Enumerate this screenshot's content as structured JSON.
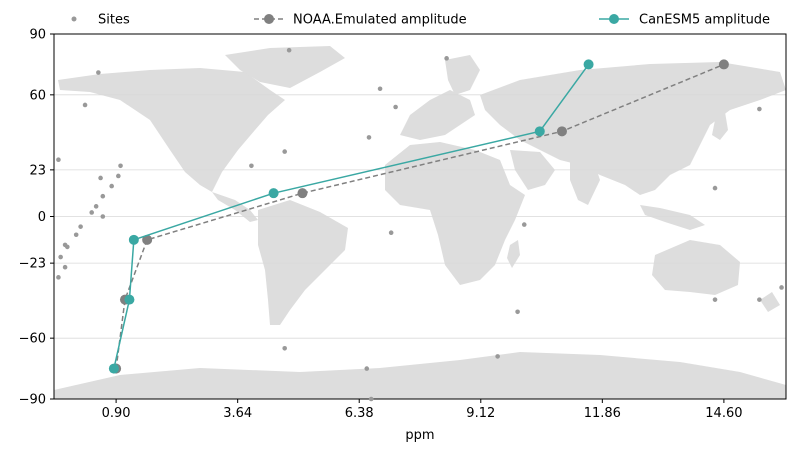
{
  "chart_data": {
    "type": "line",
    "title": "",
    "xlabel": "ppm",
    "ylabel": "",
    "xlim": [
      -0.5,
      16.0
    ],
    "ylim": [
      -90,
      90
    ],
    "xticks": [
      0.9,
      3.64,
      6.38,
      9.12,
      11.86,
      14.6
    ],
    "xtick_labels": [
      "0.90",
      "3.64",
      "6.38",
      "9.12",
      "11.86",
      "14.60"
    ],
    "yticks": [
      -90,
      -60,
      -23,
      0,
      23,
      60,
      90
    ],
    "ytick_labels": [
      "−90",
      "−60",
      "−23",
      "0",
      "23",
      "60",
      "90"
    ],
    "grid": "horizontal",
    "legend_placement": "top (above plot)",
    "background": "world-map (grey land)",
    "series": [
      {
        "name": "NOAA.Emulated amplitude",
        "color": "#808080",
        "style": "dashed",
        "marker": "circle",
        "points": [
          {
            "x": 0.9,
            "y": -75
          },
          {
            "x": 1.1,
            "y": -41
          },
          {
            "x": 1.6,
            "y": -11.5
          },
          {
            "x": 5.1,
            "y": 11.5
          },
          {
            "x": 10.95,
            "y": 42
          },
          {
            "x": 14.6,
            "y": 75
          }
        ]
      },
      {
        "name": "CanESM5 amplitude",
        "color": "#3aa8a3",
        "style": "solid",
        "marker": "circle",
        "points": [
          {
            "x": 0.85,
            "y": -75
          },
          {
            "x": 1.2,
            "y": -41
          },
          {
            "x": 1.3,
            "y": -11.5
          },
          {
            "x": 4.45,
            "y": 11.5
          },
          {
            "x": 10.45,
            "y": 42
          },
          {
            "x": 11.55,
            "y": 75
          }
        ]
      }
    ],
    "sites": {
      "name": "Sites",
      "color": "#999999",
      "points": [
        {
          "x": 4.8,
          "y": 82
        },
        {
          "x": 0.5,
          "y": 71
        },
        {
          "x": 8.35,
          "y": 78
        },
        {
          "x": 0.2,
          "y": 55
        },
        {
          "x": 6.85,
          "y": 63
        },
        {
          "x": 7.2,
          "y": 54
        },
        {
          "x": 6.6,
          "y": 39
        },
        {
          "x": 4.7,
          "y": 32
        },
        {
          "x": 3.95,
          "y": 25
        },
        {
          "x": -0.4,
          "y": 28
        },
        {
          "x": 1.0,
          "y": 25
        },
        {
          "x": 0.95,
          "y": 20
        },
        {
          "x": 0.55,
          "y": 19
        },
        {
          "x": 0.8,
          "y": 15
        },
        {
          "x": 0.6,
          "y": 10
        },
        {
          "x": 0.45,
          "y": 5
        },
        {
          "x": 0.35,
          "y": 2
        },
        {
          "x": 0.6,
          "y": 0
        },
        {
          "x": 0.1,
          "y": -5
        },
        {
          "x": 0.0,
          "y": -9
        },
        {
          "x": -0.25,
          "y": -14
        },
        {
          "x": -0.2,
          "y": -15
        },
        {
          "x": -0.35,
          "y": -20
        },
        {
          "x": -0.25,
          "y": -25
        },
        {
          "x": -0.4,
          "y": -30
        },
        {
          "x": 7.1,
          "y": -8
        },
        {
          "x": 10.1,
          "y": -4
        },
        {
          "x": 14.4,
          "y": 14
        },
        {
          "x": 15.4,
          "y": 53
        },
        {
          "x": 14.4,
          "y": -41
        },
        {
          "x": 15.4,
          "y": -41
        },
        {
          "x": 15.9,
          "y": -35
        },
        {
          "x": 9.95,
          "y": -47
        },
        {
          "x": 4.7,
          "y": -65
        },
        {
          "x": 9.5,
          "y": -69
        },
        {
          "x": 6.55,
          "y": -75
        },
        {
          "x": 6.65,
          "y": -90
        }
      ]
    }
  }
}
